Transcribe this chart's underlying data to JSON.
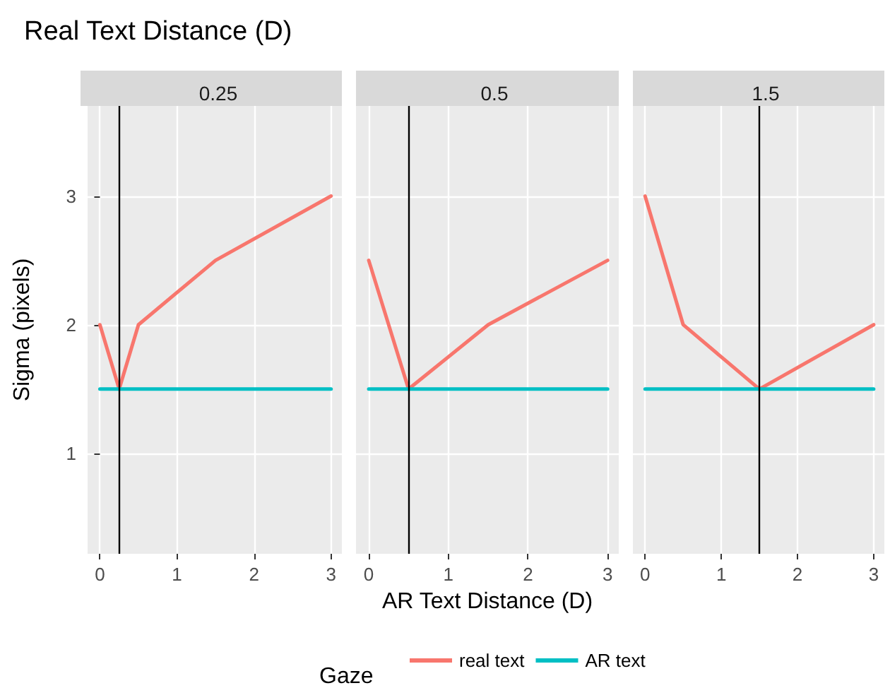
{
  "chart_data": [
    {
      "type": "line",
      "title": "Real Text Distance (D)",
      "subtitle": "0.25",
      "ylabel": "Sigma (pixels)",
      "xlim": [
        -0.16,
        3.14
      ],
      "xticks": [
        0,
        1,
        2,
        3
      ],
      "ylim": [
        0.22,
        3.7
      ],
      "yticks": [
        1,
        2,
        3
      ],
      "grid": true,
      "legend": false,
      "marker": "none",
      "line_style": "solid",
      "series": [
        {
          "color": "#f8766d",
          "x": [
            0,
            0.25,
            0.5,
            1.5,
            3
          ],
          "values": [
            2,
            1.5,
            2,
            2.5,
            3
          ]
        },
        {
          "color": "#00bfc4",
          "x": [
            0,
            3
          ],
          "values": [
            1.5,
            1.5
          ]
        }
      ],
      "ref_lines": [
        {
          "axis": "x",
          "value": 0.25,
          "color": "#000000"
        }
      ]
    },
    {
      "type": "line",
      "subtitle": "0.5",
      "xlabel": "AR Text Distance (D)",
      "legend_title": "Gaze",
      "xlim": [
        -0.16,
        3.14
      ],
      "xticks": [
        0,
        1,
        2,
        3
      ],
      "ylim": [
        0.22,
        3.7
      ],
      "yticks": [
        1,
        2,
        3
      ],
      "tick_labels": "x",
      "grid": true,
      "legend": "bottom",
      "marker": "none",
      "line_style": "solid",
      "series": [
        {
          "name": "real text",
          "color": "#f8766d",
          "x": [
            0,
            0.5,
            1.5,
            3
          ],
          "values": [
            2.5,
            1.5,
            2,
            2.5
          ]
        },
        {
          "name": "AR text",
          "color": "#00bfc4",
          "x": [
            0,
            3
          ],
          "values": [
            1.5,
            1.5
          ]
        }
      ],
      "ref_lines": [
        {
          "axis": "x",
          "value": 0.5,
          "color": "#000000"
        }
      ]
    },
    {
      "type": "line",
      "subtitle": "1.5",
      "xlim": [
        -0.16,
        3.14
      ],
      "xticks": [
        0,
        1,
        2,
        3
      ],
      "ylim": [
        0.22,
        3.7
      ],
      "yticks": [
        1,
        2,
        3
      ],
      "tick_labels": "x",
      "grid": true,
      "legend": false,
      "marker": "none",
      "line_style": "solid",
      "series": [
        {
          "color": "#f8766d",
          "x": [
            0,
            0.5,
            1.5,
            3
          ],
          "values": [
            3,
            2,
            1.5,
            2
          ]
        },
        {
          "color": "#00bfc4",
          "x": [
            0,
            3
          ],
          "values": [
            1.5,
            1.5
          ]
        }
      ],
      "ref_lines": [
        {
          "axis": "x",
          "value": 1.5,
          "color": "#000000"
        }
      ]
    }
  ]
}
